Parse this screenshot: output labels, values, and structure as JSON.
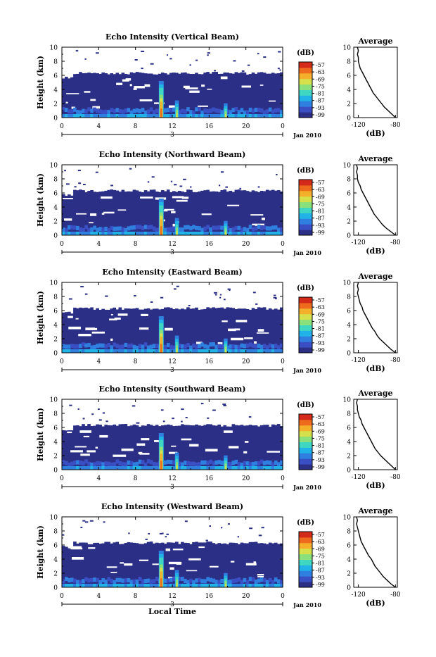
{
  "chart_data": [
    {
      "type": "heatmap",
      "title": "Echo Intensity (Vertical Beam)",
      "ylabel": "Height (km)",
      "x_ticks": [
        "0",
        "4",
        "8",
        "12",
        "16",
        "20",
        "0"
      ],
      "x_range": [
        0,
        24
      ],
      "y_ticks": [
        "0",
        "2",
        "4",
        "6",
        "8",
        "10"
      ],
      "ylim": [
        0,
        10
      ],
      "date_tick": "3",
      "date_label": "Jan 2010",
      "colorbar": {
        "unit": "(dB)",
        "ticks": [
          "-57",
          "-63",
          "-69",
          "-75",
          "-81",
          "-87",
          "-93",
          "-99"
        ]
      },
      "cloud_top_km": 6.3,
      "plume_hours": [
        10.8,
        12.5,
        17.8
      ],
      "average": {
        "title": "Average",
        "xlabel": "(dB)",
        "x_ticks": [
          "-120",
          "-80"
        ],
        "xlim": [
          -125,
          -78
        ],
        "ylim": [
          0,
          10
        ],
        "y_ticks": [
          "0",
          "2",
          "4",
          "6",
          "8",
          "10"
        ],
        "profile": [
          [
            -80,
            0
          ],
          [
            -84,
            0.5
          ],
          [
            -88,
            1
          ],
          [
            -92,
            1.5
          ],
          [
            -95,
            2
          ],
          [
            -98,
            2.5
          ],
          [
            -101,
            3
          ],
          [
            -104,
            3.5
          ],
          [
            -106,
            4
          ],
          [
            -108,
            4.5
          ],
          [
            -110,
            5
          ],
          [
            -112,
            5.5
          ],
          [
            -114,
            6
          ],
          [
            -116,
            6.5
          ],
          [
            -118,
            7
          ],
          [
            -119,
            7.5
          ],
          [
            -120,
            8
          ],
          [
            -120,
            8.5
          ],
          [
            -121,
            9
          ],
          [
            -120,
            9.5
          ],
          [
            -121,
            10
          ]
        ]
      }
    },
    {
      "type": "heatmap",
      "title": "Echo Intensity (Northward Beam)",
      "ylabel": "Height (km)",
      "x_ticks": [
        "0",
        "4",
        "8",
        "12",
        "16",
        "20",
        "0"
      ],
      "x_range": [
        0,
        24
      ],
      "y_ticks": [
        "0",
        "2",
        "4",
        "6",
        "8",
        "10"
      ],
      "ylim": [
        0,
        10
      ],
      "date_tick": "3",
      "date_label": "Jan 2010",
      "colorbar": {
        "unit": "(dB)",
        "ticks": [
          "-57",
          "-63",
          "-69",
          "-75",
          "-81",
          "-87",
          "-93",
          "-99"
        ]
      },
      "cloud_top_km": 6.3,
      "plume_hours": [
        10.8,
        12.5,
        17.8
      ],
      "average": {
        "title": "Average",
        "xlabel": "(dB)",
        "x_ticks": [
          "-120",
          "-80"
        ],
        "xlim": [
          -125,
          -78
        ],
        "ylim": [
          0,
          10
        ],
        "y_ticks": [
          "0",
          "2",
          "4",
          "6",
          "8",
          "10"
        ],
        "profile": [
          [
            -80,
            0
          ],
          [
            -85,
            0.5
          ],
          [
            -90,
            1
          ],
          [
            -94,
            1.5
          ],
          [
            -97,
            2
          ],
          [
            -100,
            2.5
          ],
          [
            -103,
            3
          ],
          [
            -105,
            3.5
          ],
          [
            -107,
            4
          ],
          [
            -109,
            4.5
          ],
          [
            -111,
            5
          ],
          [
            -113,
            5.5
          ],
          [
            -115,
            6
          ],
          [
            -117,
            6.5
          ],
          [
            -118,
            7
          ],
          [
            -120,
            7.5
          ],
          [
            -121,
            8
          ],
          [
            -121,
            8.5
          ],
          [
            -122,
            9
          ],
          [
            -121,
            9.5
          ],
          [
            -122,
            10
          ]
        ]
      }
    },
    {
      "type": "heatmap",
      "title": "Echo Intensity (Eastward Beam)",
      "ylabel": "Height (km)",
      "x_ticks": [
        "0",
        "4",
        "8",
        "12",
        "16",
        "20",
        "0"
      ],
      "x_range": [
        0,
        24
      ],
      "y_ticks": [
        "0",
        "2",
        "4",
        "6",
        "8",
        "10"
      ],
      "ylim": [
        0,
        10
      ],
      "date_tick": "3",
      "date_label": "Jan 2010",
      "colorbar": {
        "unit": "(dB)",
        "ticks": [
          "-57",
          "-63",
          "-69",
          "-75",
          "-81",
          "-87",
          "-93",
          "-99"
        ]
      },
      "cloud_top_km": 6.3,
      "plume_hours": [
        10.8,
        12.5,
        17.8
      ],
      "average": {
        "title": "Average",
        "xlabel": "(dB)",
        "x_ticks": [
          "-120",
          "-80"
        ],
        "xlim": [
          -125,
          -78
        ],
        "ylim": [
          0,
          10
        ],
        "y_ticks": [
          "0",
          "2",
          "4",
          "6",
          "8",
          "10"
        ],
        "profile": [
          [
            -80,
            0
          ],
          [
            -85,
            0.5
          ],
          [
            -89,
            1
          ],
          [
            -93,
            1.5
          ],
          [
            -97,
            2
          ],
          [
            -100,
            2.5
          ],
          [
            -102,
            3
          ],
          [
            -105,
            3.5
          ],
          [
            -107,
            4
          ],
          [
            -109,
            4.5
          ],
          [
            -111,
            5
          ],
          [
            -113,
            5.5
          ],
          [
            -115,
            6
          ],
          [
            -116,
            6.5
          ],
          [
            -118,
            7
          ],
          [
            -119,
            7.5
          ],
          [
            -120,
            8
          ],
          [
            -121,
            8.5
          ],
          [
            -120,
            9
          ],
          [
            -121,
            9.5
          ],
          [
            -120,
            10
          ]
        ]
      }
    },
    {
      "type": "heatmap",
      "title": "Echo Intensity (Southward Beam)",
      "ylabel": "Height (km)",
      "x_ticks": [
        "0",
        "4",
        "8",
        "12",
        "16",
        "20",
        "0"
      ],
      "x_range": [
        0,
        24
      ],
      "y_ticks": [
        "0",
        "2",
        "4",
        "6",
        "8",
        "10"
      ],
      "ylim": [
        0,
        10
      ],
      "date_tick": "3",
      "date_label": "Jan 2010",
      "colorbar": {
        "unit": "(dB)",
        "ticks": [
          "-57",
          "-63",
          "-69",
          "-75",
          "-81",
          "-87",
          "-93",
          "-99"
        ]
      },
      "cloud_top_km": 6.3,
      "plume_hours": [
        10.8,
        12.5,
        17.8
      ],
      "average": {
        "title": "Average",
        "xlabel": "(dB)",
        "x_ticks": [
          "-120",
          "-80"
        ],
        "xlim": [
          -125,
          -78
        ],
        "ylim": [
          0,
          10
        ],
        "y_ticks": [
          "0",
          "2",
          "4",
          "6",
          "8",
          "10"
        ],
        "profile": [
          [
            -80,
            0
          ],
          [
            -84,
            0.5
          ],
          [
            -88,
            1
          ],
          [
            -92,
            1.5
          ],
          [
            -96,
            2
          ],
          [
            -99,
            2.5
          ],
          [
            -102,
            3
          ],
          [
            -104,
            3.5
          ],
          [
            -106,
            4
          ],
          [
            -108,
            4.5
          ],
          [
            -110,
            5
          ],
          [
            -112,
            5.5
          ],
          [
            -114,
            6
          ],
          [
            -116,
            6.5
          ],
          [
            -117,
            7
          ],
          [
            -119,
            7.5
          ],
          [
            -120,
            8
          ],
          [
            -121,
            8.5
          ],
          [
            -121,
            9
          ],
          [
            -122,
            9.5
          ],
          [
            -121,
            10
          ]
        ]
      }
    },
    {
      "type": "heatmap",
      "title": "Echo Intensity (Westward Beam)",
      "ylabel": "Height (km)",
      "x_ticks": [
        "0",
        "4",
        "8",
        "12",
        "16",
        "20",
        "0"
      ],
      "x_range": [
        0,
        24
      ],
      "y_ticks": [
        "0",
        "2",
        "4",
        "6",
        "8",
        "10"
      ],
      "ylim": [
        0,
        10
      ],
      "date_tick": "3",
      "date_label": "Jan 2010",
      "xlabel": "Local Time",
      "colorbar": {
        "unit": "(dB)",
        "ticks": [
          "-57",
          "-63",
          "-69",
          "-75",
          "-81",
          "-87",
          "-93",
          "-99"
        ]
      },
      "cloud_top_km": 6.3,
      "plume_hours": [
        10.8,
        12.5,
        17.8
      ],
      "average": {
        "title": "Average",
        "xlabel": "(dB)",
        "x_ticks": [
          "-120",
          "-80"
        ],
        "xlim": [
          -125,
          -78
        ],
        "ylim": [
          0,
          10
        ],
        "y_ticks": [
          "0",
          "2",
          "4",
          "6",
          "8",
          "10"
        ],
        "profile": [
          [
            -80,
            0
          ],
          [
            -85,
            0.5
          ],
          [
            -89,
            1
          ],
          [
            -93,
            1.5
          ],
          [
            -96,
            2
          ],
          [
            -99,
            2.5
          ],
          [
            -102,
            3
          ],
          [
            -104,
            3.5
          ],
          [
            -106,
            4
          ],
          [
            -109,
            4.5
          ],
          [
            -111,
            5
          ],
          [
            -113,
            5.5
          ],
          [
            -115,
            6
          ],
          [
            -117,
            6.5
          ],
          [
            -118,
            7
          ],
          [
            -119,
            7.5
          ],
          [
            -120,
            8
          ],
          [
            -121,
            8.5
          ],
          [
            -122,
            9
          ],
          [
            -121,
            9.5
          ],
          [
            -122,
            10
          ]
        ]
      }
    }
  ],
  "colors": {
    "background": "#2b2f86",
    "colormap": [
      "#2b2f86",
      "#3b4fc4",
      "#2f7fe0",
      "#21b2e8",
      "#3fd6c2",
      "#8ae07a",
      "#d6e04a",
      "#f4b02a",
      "#ee6a1c",
      "#d42a1a"
    ]
  }
}
